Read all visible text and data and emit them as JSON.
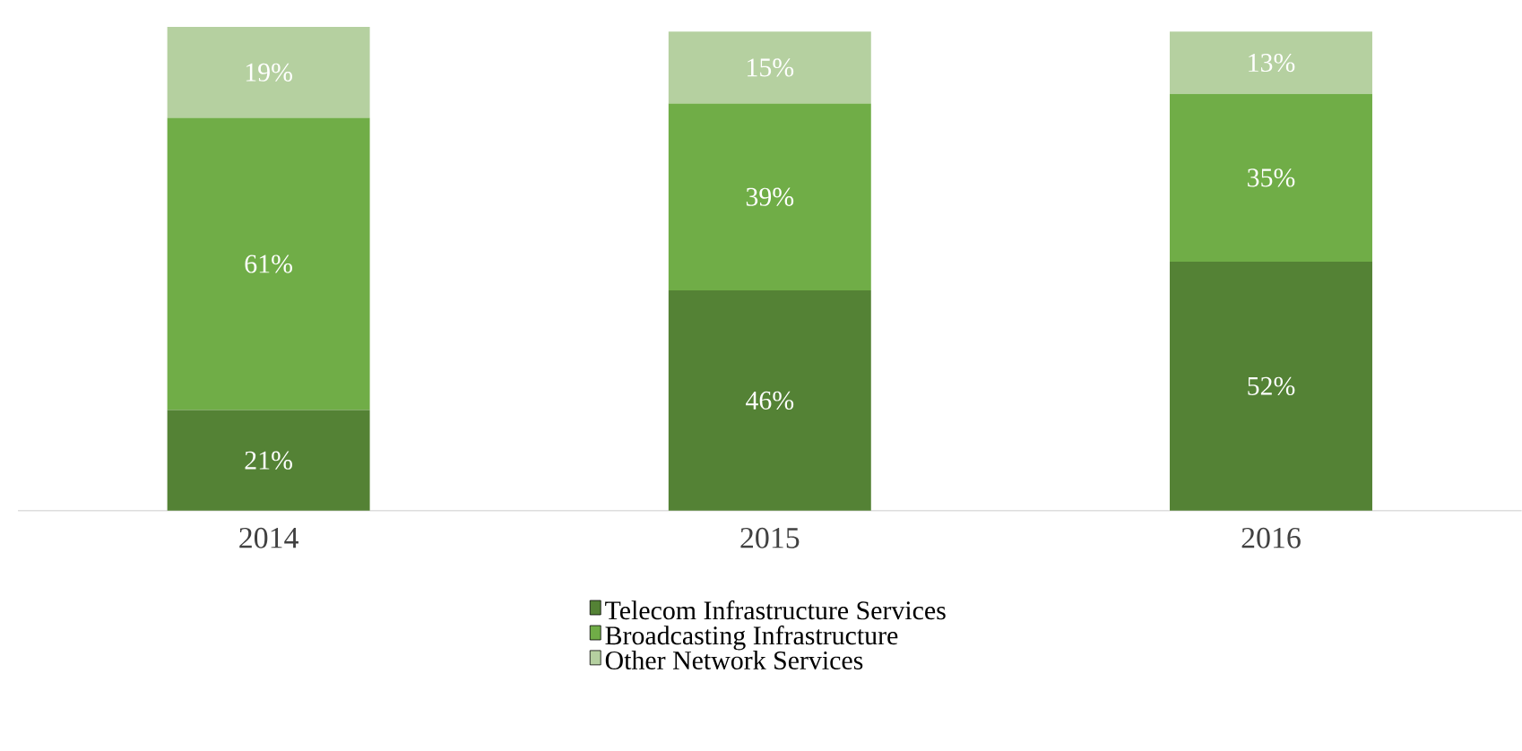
{
  "chart_data": {
    "type": "bar",
    "stacked": true,
    "categories": [
      "2014",
      "2015",
      "2016"
    ],
    "series": [
      {
        "name": "Telecom Infrastructure Services",
        "color": "#548235",
        "values": [
          21,
          46,
          52
        ],
        "value_labels": [
          "21%",
          "46%",
          "52%"
        ]
      },
      {
        "name": "Broadcasting Infrastructure",
        "color": "#70ad47",
        "values": [
          61,
          39,
          35
        ],
        "value_labels": [
          "61%",
          "39%",
          "35%"
        ]
      },
      {
        "name": "Other Network Services",
        "color": "#b5d0a0",
        "values": [
          19,
          15,
          13
        ],
        "value_labels": [
          "19%",
          "15%",
          "13%"
        ]
      }
    ],
    "legend": "bottom"
  }
}
